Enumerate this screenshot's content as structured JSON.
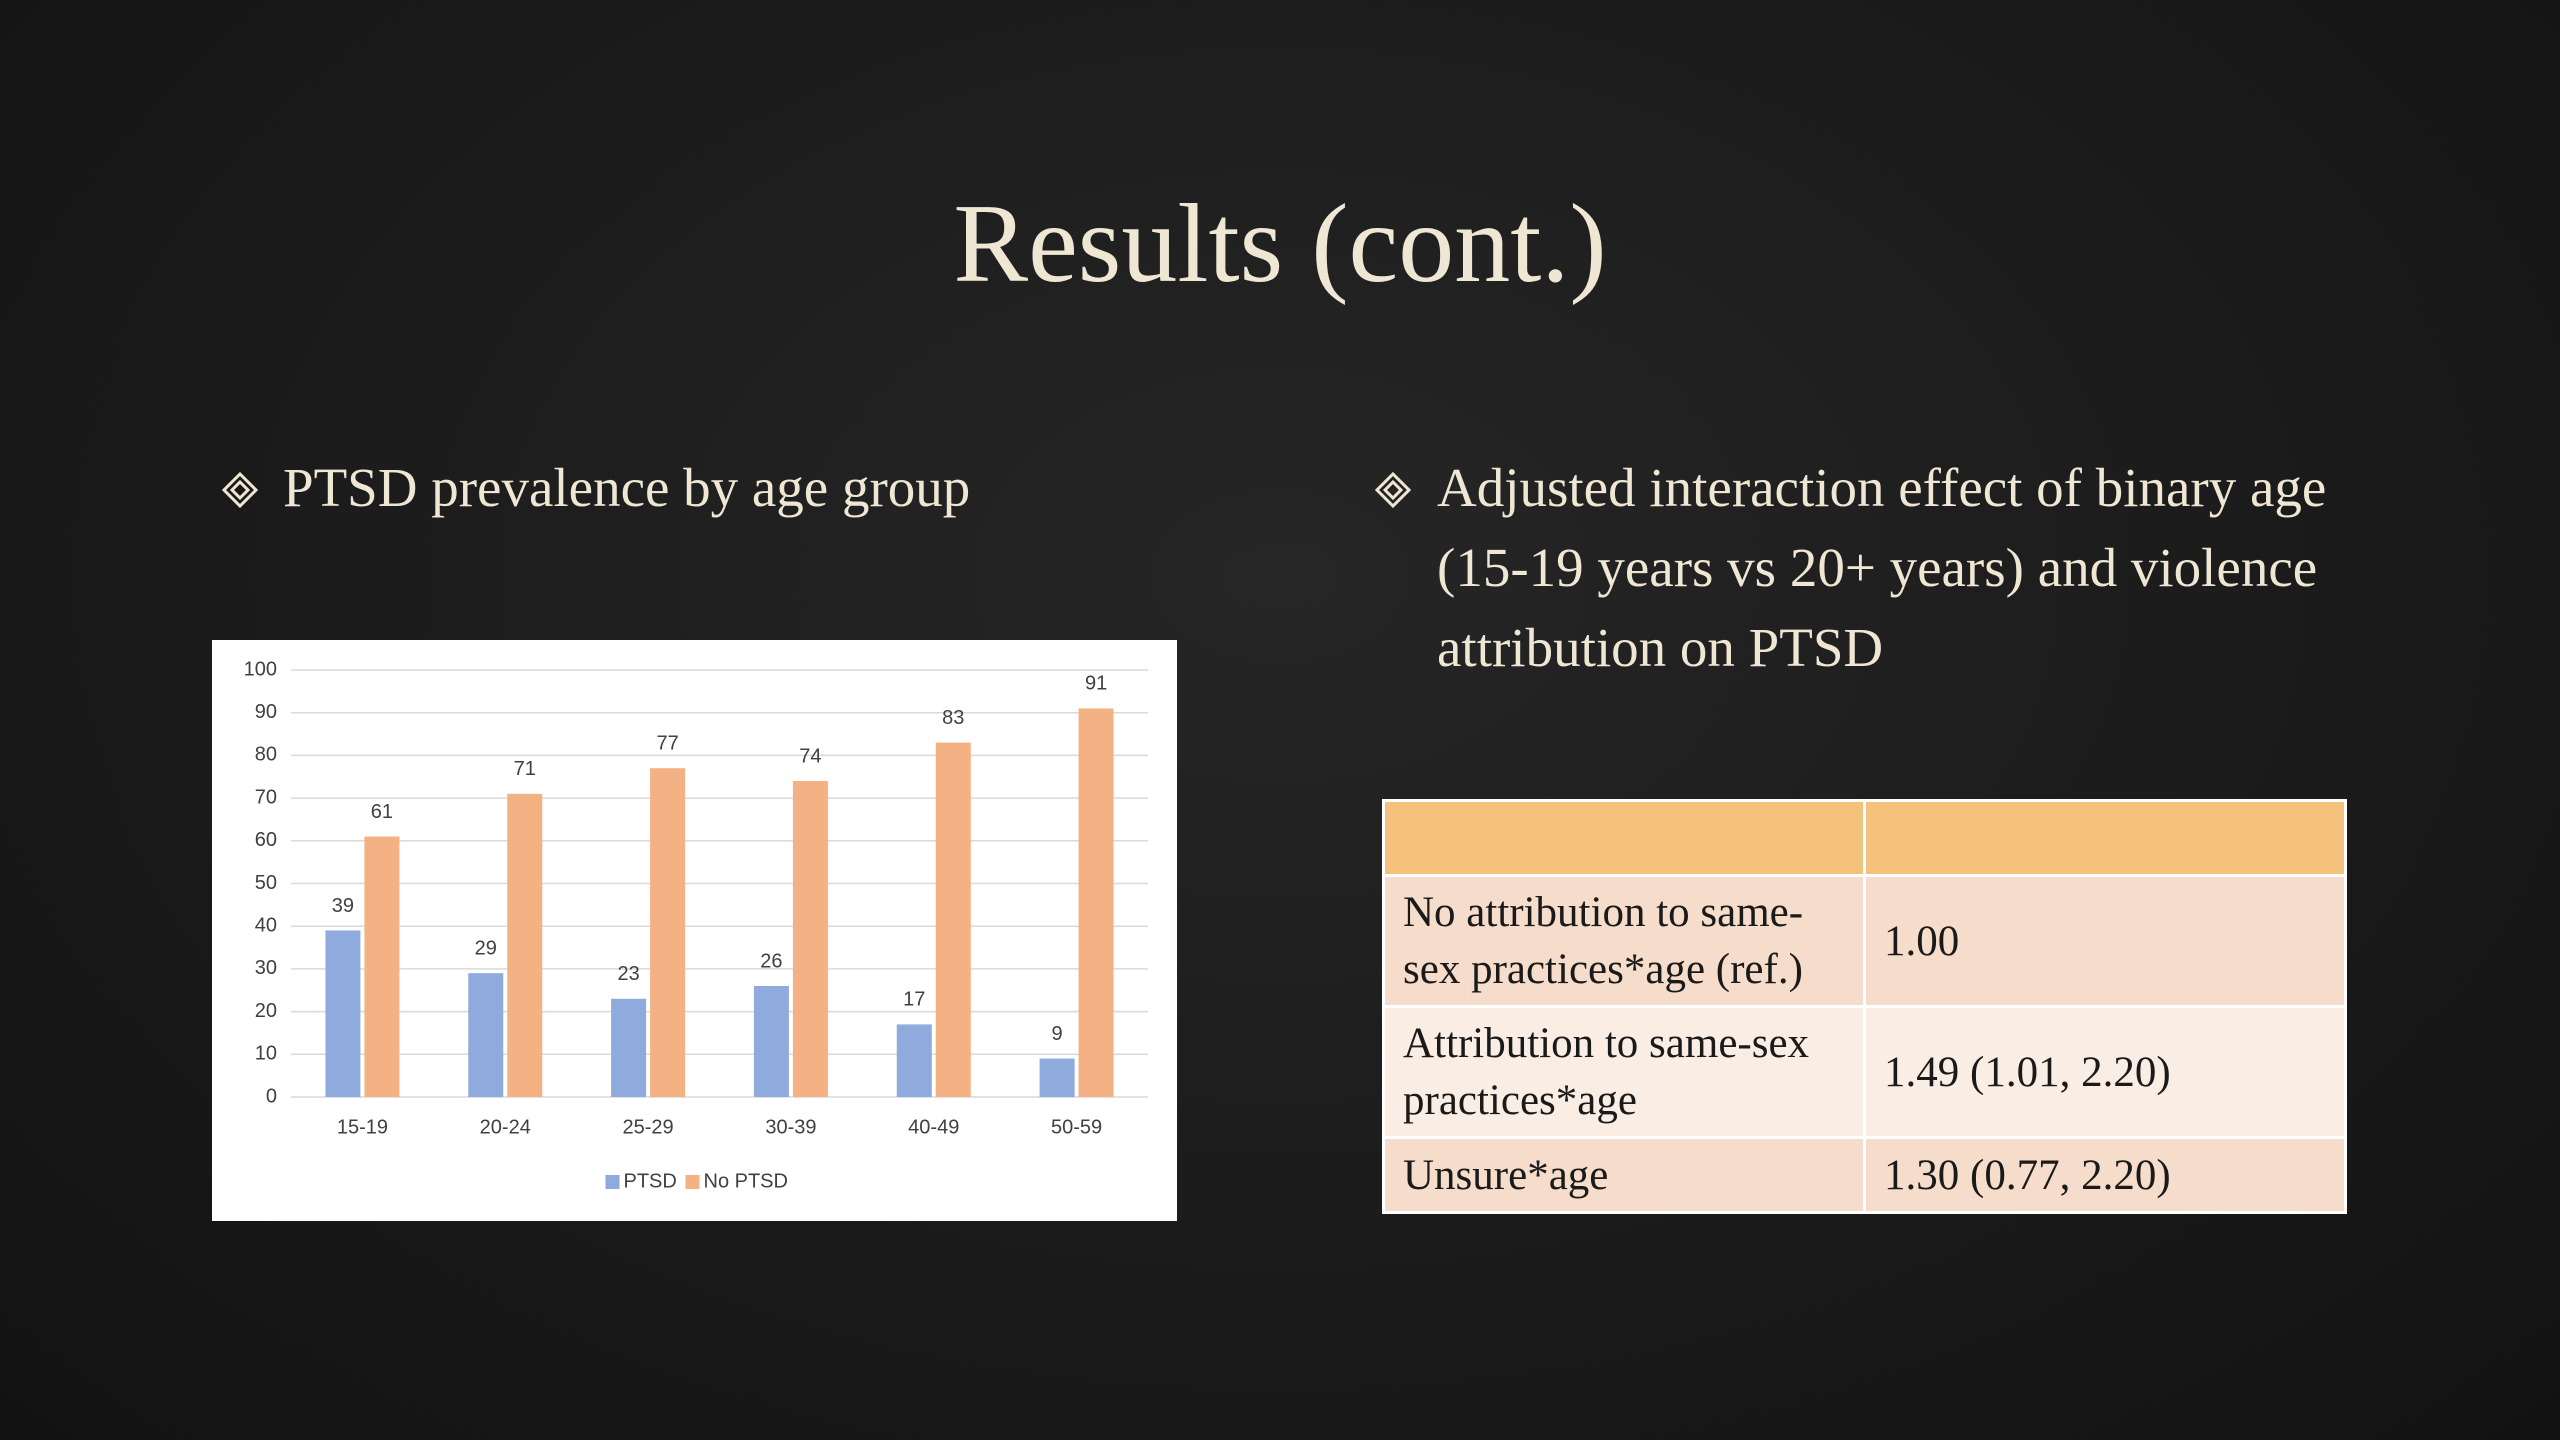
{
  "title": "Results (cont.)",
  "bullets": [
    "PTSD prevalence by age group",
    "Adjusted interaction effect of binary age (15-19 years vs 20+ years) and violence attribution on PTSD"
  ],
  "chart_data": {
    "type": "bar",
    "categories": [
      "15-19",
      "20-24",
      "25-29",
      "30-39",
      "40-49",
      "50-59"
    ],
    "series": [
      {
        "name": "PTSD",
        "color": "#8faadc",
        "values": [
          39,
          29,
          23,
          26,
          17,
          9
        ]
      },
      {
        "name": "No PTSD",
        "color": "#f4b183",
        "values": [
          61,
          71,
          77,
          74,
          83,
          91
        ]
      }
    ],
    "ylim": [
      0,
      100
    ],
    "yticks": [
      0,
      10,
      20,
      30,
      40,
      50,
      60,
      70,
      80,
      90,
      100
    ],
    "grid": true,
    "legend": "bottom"
  },
  "table": {
    "rows": [
      [
        "No attribution to same-sex practices*age (ref.)",
        "1.00"
      ],
      [
        "Attribution to same-sex practices*age",
        "1.49 (1.01, 2.20)"
      ],
      [
        "Unsure*age",
        "1.30 (0.77, 2.20)"
      ]
    ]
  }
}
